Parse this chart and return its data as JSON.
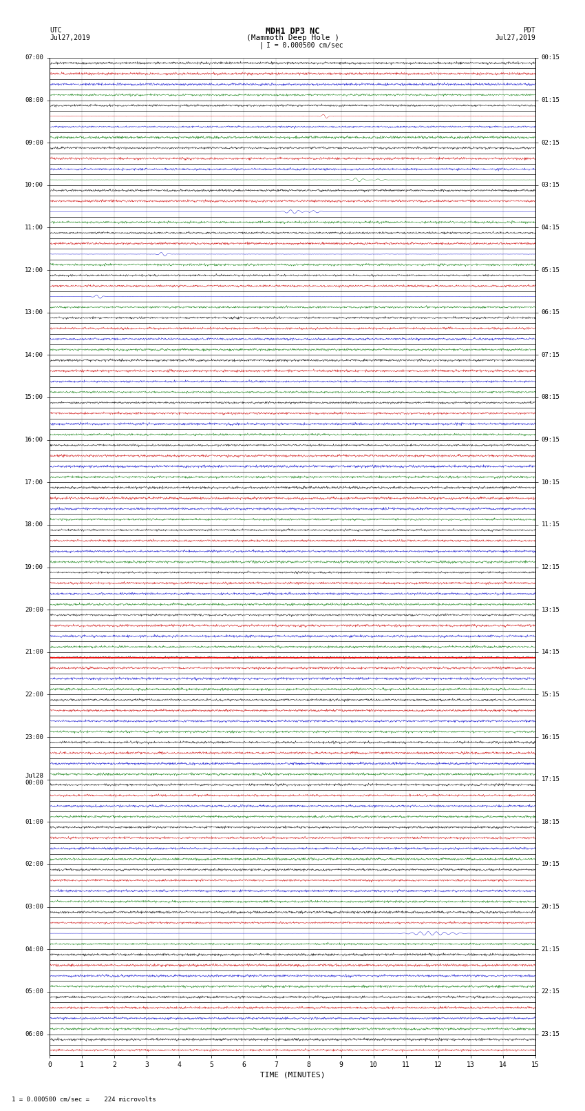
{
  "title_line1": "MDH1 DP3 NC",
  "title_line2": "(Mammoth Deep Hole )",
  "scale_text": "I = 0.000500 cm/sec",
  "left_header_line1": "UTC",
  "left_header_line2": "Jul27,2019",
  "right_header_line1": "PDT",
  "right_header_line2": "Jul27,2019",
  "xlabel": "TIME (MINUTES)",
  "footer_text": "1 = 0.000500 cm/sec =    224 microvolts",
  "xlim": [
    0,
    15
  ],
  "n_rows": 47,
  "utc_labels_and_positions": [
    [
      0,
      "07:00"
    ],
    [
      4,
      "08:00"
    ],
    [
      8,
      "09:00"
    ],
    [
      12,
      "10:00"
    ],
    [
      16,
      "11:00"
    ],
    [
      20,
      "12:00"
    ],
    [
      24,
      "13:00"
    ],
    [
      28,
      "14:00"
    ],
    [
      32,
      "15:00"
    ],
    [
      36,
      "16:00"
    ],
    [
      40,
      "17:00"
    ],
    [
      44,
      "18:00"
    ],
    [
      48,
      "19:00"
    ],
    [
      52,
      "20:00"
    ],
    [
      56,
      "21:00"
    ],
    [
      60,
      "22:00"
    ],
    [
      64,
      "23:00"
    ],
    [
      68,
      "Jul28\n00:00"
    ],
    [
      72,
      "01:00"
    ],
    [
      76,
      "02:00"
    ],
    [
      80,
      "03:00"
    ],
    [
      84,
      "04:00"
    ],
    [
      88,
      "05:00"
    ],
    [
      92,
      "06:00"
    ]
  ],
  "pdt_labels_and_positions": [
    [
      0,
      "00:15"
    ],
    [
      4,
      "01:15"
    ],
    [
      8,
      "02:15"
    ],
    [
      12,
      "03:15"
    ],
    [
      16,
      "04:15"
    ],
    [
      20,
      "05:15"
    ],
    [
      24,
      "06:15"
    ],
    [
      28,
      "07:15"
    ],
    [
      32,
      "08:15"
    ],
    [
      36,
      "09:15"
    ],
    [
      40,
      "10:15"
    ],
    [
      44,
      "11:15"
    ],
    [
      48,
      "12:15"
    ],
    [
      52,
      "13:15"
    ],
    [
      56,
      "14:15"
    ],
    [
      60,
      "15:15"
    ],
    [
      64,
      "16:15"
    ],
    [
      68,
      "17:15"
    ],
    [
      72,
      "18:15"
    ],
    [
      76,
      "19:15"
    ],
    [
      80,
      "20:15"
    ],
    [
      84,
      "21:15"
    ],
    [
      88,
      "22:15"
    ],
    [
      92,
      "23:15"
    ]
  ],
  "n_total_rows": 94,
  "rows_per_hour": 4,
  "hour_tick_every": 4,
  "red_line_row": 56,
  "noise_seed": 42,
  "background_color": "white",
  "trace_color_black": "#000000",
  "trace_color_red": "#cc0000",
  "trace_color_blue": "#0000cc",
  "trace_color_green": "#007700",
  "grid_color": "#aaaaaa",
  "noise_amplitude": 0.025,
  "row_amplitude": 0.38
}
